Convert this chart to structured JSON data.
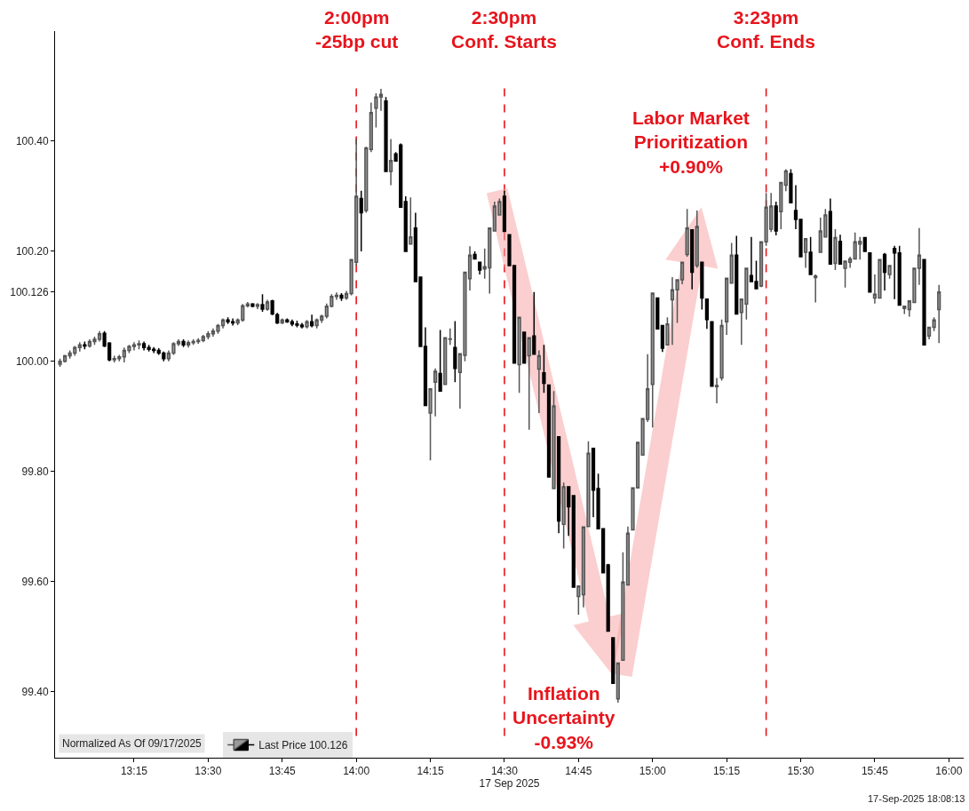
{
  "chart_data": {
    "type": "candlestick",
    "xlabel": "17 Sep 2025",
    "x": [
      "2025-09-17T13:00",
      "2025-09-17T13:01",
      "2025-09-17T13:02",
      "2025-09-17T13:03",
      "2025-09-17T13:04",
      "2025-09-17T13:05",
      "2025-09-17T13:06",
      "2025-09-17T13:07",
      "2025-09-17T13:08",
      "2025-09-17T13:09",
      "2025-09-17T13:10",
      "2025-09-17T13:11",
      "2025-09-17T13:12",
      "2025-09-17T13:13",
      "2025-09-17T13:14",
      "2025-09-17T13:15",
      "2025-09-17T13:16",
      "2025-09-17T13:17",
      "2025-09-17T13:18",
      "2025-09-17T13:19",
      "2025-09-17T13:20",
      "2025-09-17T13:21",
      "2025-09-17T13:22",
      "2025-09-17T13:23",
      "2025-09-17T13:24",
      "2025-09-17T13:25",
      "2025-09-17T13:26",
      "2025-09-17T13:27",
      "2025-09-17T13:28",
      "2025-09-17T13:29",
      "2025-09-17T13:30",
      "2025-09-17T13:31",
      "2025-09-17T13:32",
      "2025-09-17T13:33",
      "2025-09-17T13:34",
      "2025-09-17T13:35",
      "2025-09-17T13:36",
      "2025-09-17T13:37",
      "2025-09-17T13:38",
      "2025-09-17T13:39",
      "2025-09-17T13:40",
      "2025-09-17T13:41",
      "2025-09-17T13:42",
      "2025-09-17T13:43",
      "2025-09-17T13:44",
      "2025-09-17T13:45",
      "2025-09-17T13:46",
      "2025-09-17T13:47",
      "2025-09-17T13:48",
      "2025-09-17T13:49",
      "2025-09-17T13:50",
      "2025-09-17T13:51",
      "2025-09-17T13:52",
      "2025-09-17T13:53",
      "2025-09-17T13:54",
      "2025-09-17T13:55",
      "2025-09-17T13:56",
      "2025-09-17T13:57",
      "2025-09-17T13:58",
      "2025-09-17T13:59",
      "2025-09-17T14:00",
      "2025-09-17T14:01",
      "2025-09-17T14:02",
      "2025-09-17T14:03",
      "2025-09-17T14:04",
      "2025-09-17T14:05",
      "2025-09-17T14:06",
      "2025-09-17T14:07",
      "2025-09-17T14:08",
      "2025-09-17T14:09",
      "2025-09-17T14:10",
      "2025-09-17T14:11",
      "2025-09-17T14:12",
      "2025-09-17T14:13",
      "2025-09-17T14:14",
      "2025-09-17T14:15",
      "2025-09-17T14:16",
      "2025-09-17T14:17",
      "2025-09-17T14:18",
      "2025-09-17T14:19",
      "2025-09-17T14:20",
      "2025-09-17T14:21",
      "2025-09-17T14:22",
      "2025-09-17T14:23",
      "2025-09-17T14:24",
      "2025-09-17T14:25",
      "2025-09-17T14:26",
      "2025-09-17T14:27",
      "2025-09-17T14:28",
      "2025-09-17T14:29",
      "2025-09-17T14:30",
      "2025-09-17T14:31",
      "2025-09-17T14:32",
      "2025-09-17T14:33",
      "2025-09-17T14:34",
      "2025-09-17T14:35",
      "2025-09-17T14:36",
      "2025-09-17T14:37",
      "2025-09-17T14:38",
      "2025-09-17T14:39",
      "2025-09-17T14:40",
      "2025-09-17T14:41",
      "2025-09-17T14:42",
      "2025-09-17T14:43",
      "2025-09-17T14:44",
      "2025-09-17T14:45",
      "2025-09-17T14:46",
      "2025-09-17T14:47",
      "2025-09-17T14:48",
      "2025-09-17T14:49",
      "2025-09-17T14:50",
      "2025-09-17T14:51",
      "2025-09-17T14:52",
      "2025-09-17T14:53",
      "2025-09-17T14:54",
      "2025-09-17T14:55",
      "2025-09-17T14:56",
      "2025-09-17T14:57",
      "2025-09-17T14:58",
      "2025-09-17T14:59",
      "2025-09-17T15:00",
      "2025-09-17T15:01",
      "2025-09-17T15:02",
      "2025-09-17T15:03",
      "2025-09-17T15:04",
      "2025-09-17T15:05",
      "2025-09-17T15:06",
      "2025-09-17T15:07",
      "2025-09-17T15:08",
      "2025-09-17T15:09",
      "2025-09-17T15:10",
      "2025-09-17T15:11",
      "2025-09-17T15:12",
      "2025-09-17T15:13",
      "2025-09-17T15:14",
      "2025-09-17T15:15",
      "2025-09-17T15:16",
      "2025-09-17T15:17",
      "2025-09-17T15:18",
      "2025-09-17T15:19",
      "2025-09-17T15:20",
      "2025-09-17T15:21",
      "2025-09-17T15:22",
      "2025-09-17T15:23",
      "2025-09-17T15:24",
      "2025-09-17T15:25",
      "2025-09-17T15:26",
      "2025-09-17T15:27",
      "2025-09-17T15:28",
      "2025-09-17T15:29",
      "2025-09-17T15:30",
      "2025-09-17T15:31",
      "2025-09-17T15:32",
      "2025-09-17T15:33",
      "2025-09-17T15:34",
      "2025-09-17T15:35",
      "2025-09-17T15:36",
      "2025-09-17T15:37",
      "2025-09-17T15:38",
      "2025-09-17T15:39",
      "2025-09-17T15:40",
      "2025-09-17T15:41",
      "2025-09-17T15:42",
      "2025-09-17T15:43",
      "2025-09-17T15:44",
      "2025-09-17T15:45",
      "2025-09-17T15:46",
      "2025-09-17T15:47",
      "2025-09-17T15:48",
      "2025-09-17T15:49",
      "2025-09-17T15:50",
      "2025-09-17T15:51",
      "2025-09-17T15:52",
      "2025-09-17T15:53",
      "2025-09-17T15:54",
      "2025-09-17T15:55",
      "2025-09-17T15:56",
      "2025-09-17T15:57",
      "2025-09-17T15:58"
    ],
    "series": [
      {
        "name": "Last Price 100.126",
        "ohlc": [
          [
            99.995,
            100.005,
            99.99,
            100.0
          ],
          [
            100.0,
            100.012,
            99.998,
            100.01
          ],
          [
            100.01,
            100.02,
            100.005,
            100.015
          ],
          [
            100.015,
            100.028,
            100.01,
            100.025
          ],
          [
            100.025,
            100.035,
            100.018,
            100.03
          ],
          [
            100.03,
            100.036,
            100.022,
            100.028
          ],
          [
            100.028,
            100.04,
            100.025,
            100.036
          ],
          [
            100.036,
            100.045,
            100.03,
            100.04
          ],
          [
            100.04,
            100.055,
            100.036,
            100.05
          ],
          [
            100.051,
            100.055,
            100.026,
            100.028
          ],
          [
            100.033,
            100.035,
            100.0,
            100.003
          ],
          [
            100.003,
            100.01,
            99.998,
            100.005
          ],
          [
            100.005,
            100.012,
            100.0,
            100.008
          ],
          [
            100.008,
            100.025,
            99.998,
            100.02
          ],
          [
            100.02,
            100.03,
            100.015,
            100.027
          ],
          [
            100.027,
            100.035,
            100.02,
            100.03
          ],
          [
            100.03,
            100.038,
            100.022,
            100.032
          ],
          [
            100.032,
            100.036,
            100.02,
            100.025
          ],
          [
            100.025,
            100.03,
            100.018,
            100.022
          ],
          [
            100.022,
            100.026,
            100.015,
            100.02
          ],
          [
            100.02,
            100.024,
            100.012,
            100.015
          ],
          [
            100.015,
            100.018,
            100.0,
            100.005
          ],
          [
            100.005,
            100.02,
            100.0,
            100.015
          ],
          [
            100.015,
            100.035,
            100.012,
            100.032
          ],
          [
            100.032,
            100.04,
            100.028,
            100.036
          ],
          [
            100.036,
            100.04,
            100.026,
            100.03
          ],
          [
            100.03,
            100.038,
            100.025,
            100.034
          ],
          [
            100.034,
            100.04,
            100.03,
            100.036
          ],
          [
            100.036,
            100.042,
            100.032,
            100.038
          ],
          [
            100.038,
            100.048,
            100.035,
            100.045
          ],
          [
            100.045,
            100.055,
            100.04,
            100.05
          ],
          [
            100.05,
            100.06,
            100.045,
            100.055
          ],
          [
            100.055,
            100.068,
            100.05,
            100.065
          ],
          [
            100.065,
            100.078,
            100.06,
            100.075
          ],
          [
            100.075,
            100.08,
            100.068,
            100.072
          ],
          [
            100.072,
            100.078,
            100.065,
            100.07
          ],
          [
            100.07,
            100.078,
            100.066,
            100.075
          ],
          [
            100.075,
            100.104,
            100.072,
            100.101
          ],
          [
            100.101,
            100.108,
            100.098,
            100.104
          ],
          [
            100.104,
            100.106,
            100.098,
            100.1
          ],
          [
            100.1,
            100.106,
            100.095,
            100.103
          ],
          [
            100.103,
            100.122,
            100.09,
            100.095
          ],
          [
            100.095,
            100.112,
            100.092,
            100.108
          ],
          [
            100.11,
            100.112,
            100.084,
            100.086
          ],
          [
            100.085,
            100.088,
            100.068,
            100.07
          ],
          [
            100.07,
            100.078,
            100.068,
            100.075
          ],
          [
            100.075,
            100.078,
            100.07,
            100.072
          ],
          [
            100.072,
            100.076,
            100.064,
            100.068
          ],
          [
            100.068,
            100.074,
            100.062,
            100.066
          ],
          [
            100.066,
            100.07,
            100.06,
            100.063
          ],
          [
            100.063,
            100.075,
            100.06,
            100.072
          ],
          [
            100.072,
            100.085,
            100.062,
            100.065
          ],
          [
            100.065,
            100.078,
            100.06,
            100.075
          ],
          [
            100.075,
            100.085,
            100.07,
            100.082
          ],
          [
            100.082,
            100.105,
            100.078,
            100.1
          ],
          [
            100.1,
            100.122,
            100.098,
            100.118
          ],
          [
            100.118,
            100.125,
            100.112,
            100.12
          ],
          [
            100.12,
            100.124,
            100.11,
            100.115
          ],
          [
            100.115,
            100.128,
            100.112,
            100.123
          ],
          [
            100.123,
            100.185,
            100.12,
            100.185
          ],
          [
            100.18,
            100.404,
            100.174,
            100.3
          ],
          [
            100.296,
            100.31,
            100.2,
            100.27
          ],
          [
            100.274,
            100.39,
            100.27,
            100.388
          ],
          [
            100.385,
            100.47,
            100.38,
            100.452
          ],
          [
            100.46,
            100.487,
            100.425,
            100.48
          ],
          [
            100.48,
            100.495,
            100.455,
            100.485
          ],
          [
            100.473,
            100.48,
            100.345,
            100.345
          ],
          [
            100.345,
            100.404,
            100.32,
            100.365
          ],
          [
            100.377,
            100.38,
            100.364,
            100.364
          ],
          [
            100.393,
            100.396,
            100.28,
            100.28
          ],
          [
            100.29,
            100.3,
            100.2,
            100.2
          ],
          [
            100.213,
            100.298,
            100.213,
            100.226
          ],
          [
            100.242,
            100.27,
            100.145,
            100.145
          ],
          [
            100.153,
            100.153,
            100.027,
            100.027
          ],
          [
            100.027,
            100.062,
            99.92,
            99.92
          ],
          [
            99.906,
            99.95,
            99.82,
            99.95
          ],
          [
            99.962,
            99.987,
            99.9,
            99.982
          ],
          [
            99.978,
            100.057,
            99.946,
            99.946
          ],
          [
            99.958,
            100.043,
            99.958,
            100.043
          ],
          [
            100.04,
            100.06,
            100.03,
            100.041
          ],
          [
            100.025,
            100.073,
            99.962,
            99.987
          ],
          [
            99.98,
            100.014,
            99.914,
            100.014
          ],
          [
            100.011,
            100.162,
            100.0,
            100.162
          ],
          [
            100.15,
            100.209,
            100.129,
            100.193
          ],
          [
            100.194,
            100.2,
            100.186,
            100.186
          ],
          [
            100.18,
            100.18,
            100.158,
            100.166
          ],
          [
            100.168,
            100.205,
            100.15,
            100.172
          ],
          [
            100.17,
            100.242,
            100.123,
            100.242
          ],
          [
            100.237,
            100.29,
            100.237,
            100.282
          ],
          [
            100.266,
            100.296,
            100.266,
            100.29
          ],
          [
            100.3,
            100.31,
            100.236,
            100.236
          ],
          [
            100.23,
            100.23,
            100.174,
            100.174
          ],
          [
            100.174,
            100.174,
            99.997,
            99.997
          ],
          [
            99.994,
            100.08,
            99.943,
            100.08
          ],
          [
            100.053,
            100.053,
            99.997,
            99.997
          ],
          [
            100.01,
            100.043,
            99.876,
            100.043
          ],
          [
            100.046,
            100.126,
            100.013,
            100.013
          ],
          [
            99.986,
            100.02,
            99.906,
            100.01
          ],
          [
            99.979,
            100.03,
            99.943,
            99.96
          ],
          [
            99.957,
            99.957,
            99.79,
            99.79
          ],
          [
            99.769,
            99.946,
            99.769,
            99.919
          ],
          [
            99.863,
            99.863,
            99.688,
            99.71
          ],
          [
            99.704,
            99.78,
            99.66,
            99.772
          ],
          [
            99.772,
            99.772,
            99.683,
            99.736
          ],
          [
            99.756,
            99.756,
            99.59,
            99.59
          ],
          [
            99.573,
            99.592,
            99.54,
            99.592
          ],
          [
            99.576,
            99.699,
            99.553,
            99.699
          ],
          [
            99.7,
            99.855,
            99.7,
            99.833
          ],
          [
            99.842,
            99.842,
            99.717,
            99.766
          ],
          [
            99.769,
            99.796,
            99.696,
            99.696
          ],
          [
            99.696,
            99.696,
            99.616,
            99.616
          ],
          [
            99.63,
            99.632,
            99.51,
            99.51
          ],
          [
            99.498,
            99.498,
            99.415,
            99.415
          ],
          [
            99.387,
            99.452,
            99.38,
            99.452
          ],
          [
            99.457,
            99.653,
            99.457,
            99.599
          ],
          [
            99.594,
            99.7,
            99.594,
            99.688
          ],
          [
            99.694,
            99.77,
            99.694,
            99.77
          ],
          [
            99.77,
            99.853,
            99.77,
            99.853
          ],
          [
            99.83,
            99.896,
            99.83,
            99.896
          ],
          [
            99.895,
            100.013,
            99.89,
            99.95
          ],
          [
            99.958,
            100.124,
            99.88,
            100.124
          ],
          [
            100.115,
            100.115,
            100.059,
            100.059
          ],
          [
            100.065,
            100.065,
            100.017,
            100.024
          ],
          [
            100.03,
            100.08,
            100.03,
            100.068
          ],
          [
            100.112,
            100.153,
            100.03,
            100.13
          ],
          [
            100.13,
            100.148,
            100.07,
            100.148
          ],
          [
            100.148,
            100.18,
            100.14,
            100.18
          ],
          [
            100.194,
            100.277,
            100.19,
            100.242
          ],
          [
            100.239,
            100.239,
            100.131,
            100.162
          ],
          [
            100.174,
            100.274,
            100.17,
            100.245
          ],
          [
            100.18,
            100.18,
            100.094,
            100.115
          ],
          [
            100.113,
            100.113,
            100.059,
            100.076
          ],
          [
            100.072,
            100.072,
            99.955,
            99.955
          ],
          [
            99.954,
            99.97,
            99.924,
            99.956
          ],
          [
            99.97,
            100.076,
            99.965,
            100.065
          ],
          [
            100.072,
            100.151,
            100.048,
            100.151
          ],
          [
            100.142,
            100.215,
            100.142,
            100.193
          ],
          [
            100.193,
            100.228,
            100.086,
            100.086
          ],
          [
            100.089,
            100.113,
            100.03,
            100.113
          ],
          [
            100.104,
            100.169,
            100.076,
            100.169
          ],
          [
            100.156,
            100.226,
            100.145,
            100.145
          ],
          [
            100.145,
            100.183,
            100.132,
            100.132
          ],
          [
            100.137,
            100.217,
            100.135,
            100.217
          ],
          [
            100.217,
            100.306,
            100.21,
            100.28
          ],
          [
            100.24,
            100.306,
            100.235,
            100.282
          ],
          [
            100.282,
            100.29,
            100.229,
            100.237
          ],
          [
            100.272,
            100.325,
            100.24,
            100.325
          ],
          [
            100.32,
            100.349,
            100.309,
            100.346
          ],
          [
            100.341,
            100.349,
            100.288,
            100.288
          ],
          [
            100.274,
            100.32,
            100.24,
            100.258
          ],
          [
            100.258,
            100.258,
            100.19,
            100.19
          ],
          [
            100.198,
            100.223,
            100.17,
            100.223
          ],
          [
            100.198,
            100.226,
            100.158,
            100.158
          ],
          [
            100.152,
            100.158,
            100.107,
            100.155
          ],
          [
            100.198,
            100.261,
            100.198,
            100.237
          ],
          [
            100.226,
            100.277,
            100.226,
            100.266
          ],
          [
            100.272,
            100.296,
            100.177,
            100.177
          ],
          [
            100.178,
            100.24,
            100.166,
            100.225
          ],
          [
            100.218,
            100.23,
            100.177,
            100.177
          ],
          [
            100.169,
            100.182,
            100.134,
            100.182
          ],
          [
            100.18,
            100.19,
            100.17,
            100.186
          ],
          [
            100.186,
            100.234,
            100.186,
            100.217
          ],
          [
            100.213,
            100.226,
            100.185,
            100.218
          ],
          [
            100.225,
            100.225,
            100.2,
            100.2
          ],
          [
            100.197,
            100.197,
            100.126,
            100.126
          ],
          [
            100.115,
            100.158,
            100.105,
            100.122
          ],
          [
            100.115,
            100.185,
            100.115,
            100.185
          ],
          [
            100.194,
            100.197,
            100.129,
            100.162
          ],
          [
            100.158,
            100.174,
            100.15,
            100.174
          ],
          [
            100.205,
            100.21,
            100.113,
            100.197
          ],
          [
            100.197,
            100.21,
            100.102,
            100.102
          ],
          [
            100.096,
            100.1,
            100.086,
            100.1
          ],
          [
            100.094,
            100.11,
            100.081,
            100.11
          ],
          [
            100.107,
            100.169,
            100.107,
            100.169
          ],
          [
            100.169,
            100.242,
            100.139,
            100.193
          ],
          [
            100.185,
            100.185,
            100.03,
            100.03
          ],
          [
            100.046,
            100.062,
            100.04,
            100.062
          ],
          [
            100.062,
            100.08,
            100.055,
            100.075
          ],
          [
            100.094,
            100.139,
            100.033,
            100.126
          ]
        ]
      }
    ],
    "xlim": [
      "2025-09-17T12:59",
      "2025-09-17T16:03"
    ],
    "xticks": [
      {
        "value": "2025-09-17T13:15",
        "label": "13:15"
      },
      {
        "value": "2025-09-17T13:30",
        "label": "13:30"
      },
      {
        "value": "2025-09-17T13:45",
        "label": "13:45"
      },
      {
        "value": "2025-09-17T14:00",
        "label": "14:00"
      },
      {
        "value": "2025-09-17T14:15",
        "label": "14:15"
      },
      {
        "value": "2025-09-17T14:30",
        "label": "14:30"
      },
      {
        "value": "2025-09-17T14:45",
        "label": "14:45"
      },
      {
        "value": "2025-09-17T15:00",
        "label": "15:00"
      },
      {
        "value": "2025-09-17T15:15",
        "label": "15:15"
      },
      {
        "value": "2025-09-17T15:30",
        "label": "15:30"
      },
      {
        "value": "2025-09-17T15:45",
        "label": "15:45"
      },
      {
        "value": "2025-09-17T16:00",
        "label": "16:00"
      }
    ],
    "ylim": [
      99.28,
      100.6
    ],
    "yticks": [
      {
        "value": 99.4,
        "label": "99.40"
      },
      {
        "value": 99.6,
        "label": "99.60"
      },
      {
        "value": 99.8,
        "label": "99.80"
      },
      {
        "value": 100,
        "label": "100.00"
      },
      {
        "value": 100.126,
        "label": "100.126"
      },
      {
        "value": 100.2,
        "label": "100.20"
      },
      {
        "value": 100.4,
        "label": "100.40"
      }
    ],
    "ref_lines": [
      {
        "axis": "x",
        "value": "2025-09-17T14:00",
        "label": "2:00pm\n-25bp cut",
        "color": "#e8141c",
        "line_style": "dashed"
      },
      {
        "axis": "x",
        "value": "2025-09-17T14:30",
        "label": "2:30pm\nConf. Starts",
        "color": "#e8141c",
        "line_style": "dashed"
      },
      {
        "axis": "x",
        "value": "2025-09-17T15:23",
        "label": "3:23pm\nConf. Ends",
        "color": "#e8141c",
        "line_style": "dashed"
      }
    ],
    "annotations": [
      "Labor Market\nPrioritization\n+0.90%",
      "Inflation\nUncertainty\n-0.93%",
      "Normalized As Of 09/17/2025",
      "17-Sep-2025 18:08:13"
    ],
    "legend": "bottom left"
  }
}
